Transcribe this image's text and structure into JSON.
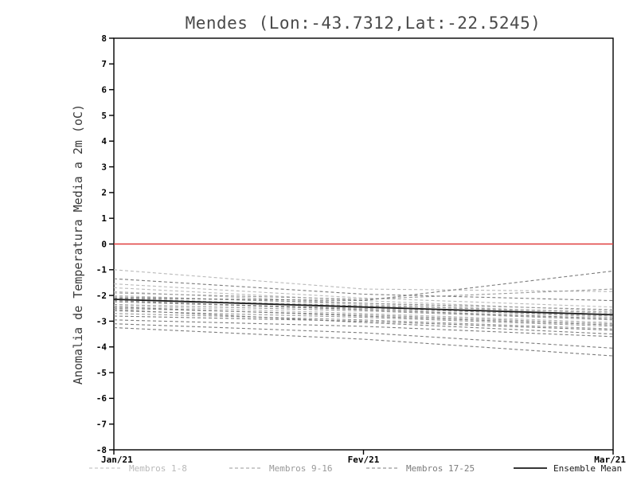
{
  "title": "Mendes (Lon:-43.7312,Lat:-22.5245)",
  "ylabel": "Anomalia de Temperatura Media a 2m (oC)",
  "colors": {
    "zero_line": "#e03c3c",
    "frame": "#000000",
    "members_1_8": "#b9b9b9",
    "members_9_16": "#999999",
    "members_17_25": "#7c7c7c",
    "ensemble_mean": "#1a1a1a"
  },
  "legend": {
    "items": [
      {
        "label": "Membros 1-8",
        "color": "#b9b9b9",
        "style": "dashed"
      },
      {
        "label": "Membros 9-16",
        "color": "#999999",
        "style": "dashed"
      },
      {
        "label": "Membros 17-25",
        "color": "#7c7c7c",
        "style": "dashed"
      },
      {
        "label": "Ensemble Mean",
        "color": "#1a1a1a",
        "style": "solid"
      }
    ]
  },
  "chart_data": {
    "type": "line",
    "title": "Mendes (Lon:-43.7312,Lat:-22.5245)",
    "xlabel": "",
    "ylabel": "Anomalia de Temperatura Media a 2m (oC)",
    "x_labels": [
      "Jan/21",
      "Fev/21",
      "Mar/21"
    ],
    "ylim": [
      -8,
      8
    ],
    "ytick_step": 1,
    "grid": false,
    "legend_position": "bottom",
    "zero_line": {
      "y": 0,
      "color": "#e03c3c"
    },
    "groups": [
      {
        "name": "Membros 1-8",
        "color": "#b9b9b9",
        "style": "dashed",
        "series": [
          [
            -1.0,
            -1.75,
            -1.85
          ],
          [
            -1.55,
            -2.1,
            -2.45
          ],
          [
            -1.7,
            -2.2,
            -2.6
          ],
          [
            -1.85,
            -2.3,
            -2.7
          ],
          [
            -2.0,
            -2.35,
            -2.75
          ],
          [
            -2.1,
            -2.45,
            -2.85
          ],
          [
            -2.25,
            -2.55,
            -2.95
          ],
          [
            -2.4,
            -2.7,
            -3.05
          ]
        ]
      },
      {
        "name": "Membros 9-16",
        "color": "#999999",
        "style": "dashed",
        "series": [
          [
            -1.9,
            -2.15,
            -1.75
          ],
          [
            -2.05,
            -2.3,
            -2.55
          ],
          [
            -2.15,
            -2.4,
            -2.65
          ],
          [
            -2.25,
            -2.5,
            -2.8
          ],
          [
            -2.35,
            -2.6,
            -2.95
          ],
          [
            -2.5,
            -2.75,
            -3.1
          ],
          [
            -2.6,
            -2.85,
            -3.2
          ],
          [
            -2.7,
            -2.95,
            -3.3
          ]
        ]
      },
      {
        "name": "Membros 17-25",
        "color": "#7c7c7c",
        "style": "dashed",
        "series": [
          [
            -2.1,
            -2.2,
            -1.05
          ],
          [
            -2.2,
            -2.55,
            -2.9
          ],
          [
            -2.45,
            -2.8,
            -3.15
          ],
          [
            -2.8,
            -3.0,
            -3.35
          ],
          [
            -2.95,
            -3.2,
            -3.6
          ],
          [
            -3.1,
            -3.45,
            -4.05
          ],
          [
            -3.25,
            -3.7,
            -4.35
          ],
          [
            -2.55,
            -3.05,
            -3.5
          ],
          [
            -1.35,
            -1.95,
            -2.2
          ]
        ]
      },
      {
        "name": "Ensemble Mean",
        "color": "#1a1a1a",
        "style": "solid",
        "series": [
          [
            -2.15,
            -2.45,
            -2.75
          ]
        ]
      }
    ]
  }
}
